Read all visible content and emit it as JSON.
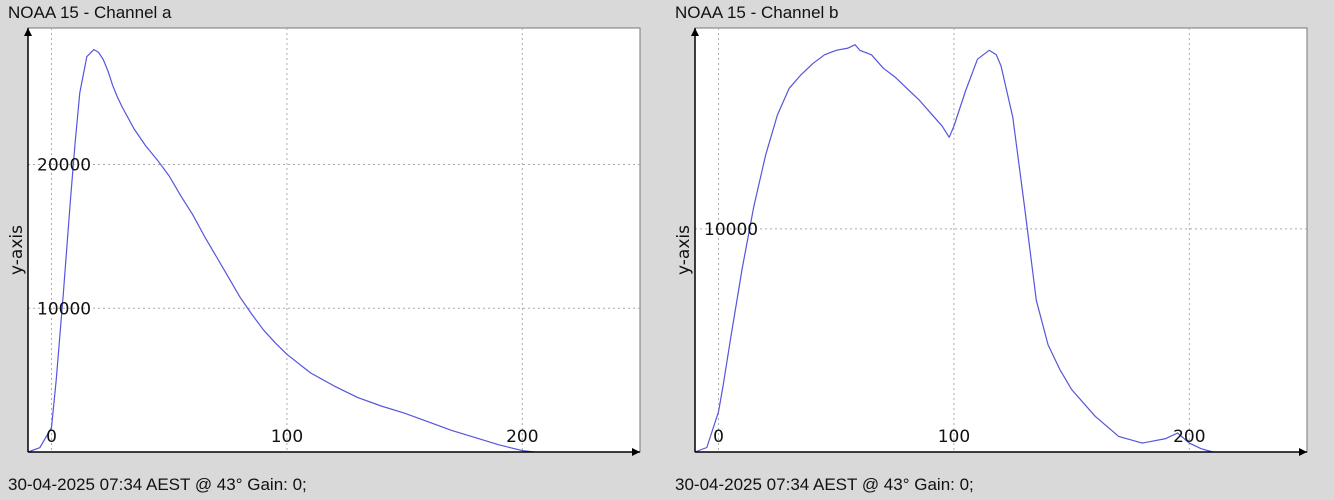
{
  "colors": {
    "background": "#d9d9d9",
    "plot_area": "#ffffff",
    "line": "#5555dd",
    "grid": "#aaaaaa",
    "axis": "#000000"
  },
  "panels": [
    {
      "title": "NOAA 15 - Channel a",
      "footer": "30-04-2025 07:34 AEST @ 43° Gain: 0;",
      "ylabel": "y-axis"
    },
    {
      "title": "NOAA 15 - Channel b",
      "footer": "30-04-2025 07:34 AEST @ 43° Gain: 0;",
      "ylabel": "y-axis"
    }
  ],
  "chart_data": [
    {
      "type": "line",
      "title": "NOAA 15 - Channel a",
      "xlabel": "",
      "ylabel": "y-axis",
      "xlim": [
        -10,
        250
      ],
      "ylim": [
        0,
        29500
      ],
      "xticks": [
        0,
        100,
        200
      ],
      "yticks": [
        10000,
        20000
      ],
      "grid": true,
      "series": [
        {
          "x": [
            -10,
            -5,
            0,
            2,
            5,
            8,
            10,
            12,
            15,
            18,
            20,
            22,
            24,
            26,
            28,
            30,
            35,
            40,
            45,
            50,
            55,
            60,
            65,
            70,
            75,
            80,
            85,
            90,
            95,
            100,
            110,
            120,
            130,
            140,
            150,
            160,
            170,
            180,
            190,
            200,
            205
          ],
          "y": [
            0,
            300,
            1700,
            5000,
            11000,
            17500,
            21500,
            25000,
            27500,
            28000,
            27800,
            27300,
            26500,
            25500,
            24700,
            24000,
            22500,
            21300,
            20300,
            19200,
            17800,
            16500,
            15000,
            13600,
            12200,
            10800,
            9600,
            8500,
            7600,
            6800,
            5500,
            4600,
            3800,
            3200,
            2700,
            2100,
            1500,
            1000,
            500,
            100,
            0
          ]
        }
      ]
    },
    {
      "type": "line",
      "title": "NOAA 15 - Channel b",
      "xlabel": "",
      "ylabel": "y-axis",
      "xlim": [
        -10,
        250
      ],
      "ylim": [
        0,
        19000
      ],
      "xticks": [
        0,
        100,
        200
      ],
      "yticks": [
        10000
      ],
      "grid": true,
      "series": [
        {
          "x": [
            -10,
            -5,
            0,
            2,
            5,
            10,
            15,
            20,
            25,
            30,
            35,
            40,
            45,
            50,
            55,
            58,
            60,
            65,
            70,
            75,
            80,
            85,
            90,
            95,
            98,
            100,
            105,
            110,
            115,
            118,
            120,
            125,
            130,
            135,
            140,
            145,
            150,
            160,
            170,
            180,
            190,
            195,
            200,
            205,
            210
          ],
          "y": [
            0,
            200,
            1800,
            3000,
            5000,
            8200,
            11000,
            13300,
            15100,
            16300,
            16900,
            17400,
            17800,
            18000,
            18100,
            18250,
            18000,
            17800,
            17200,
            16800,
            16300,
            15800,
            15200,
            14600,
            14100,
            14600,
            16200,
            17600,
            18000,
            17800,
            17300,
            15000,
            11000,
            6800,
            4800,
            3700,
            2800,
            1600,
            700,
            400,
            600,
            850,
            400,
            150,
            0
          ]
        }
      ]
    }
  ]
}
